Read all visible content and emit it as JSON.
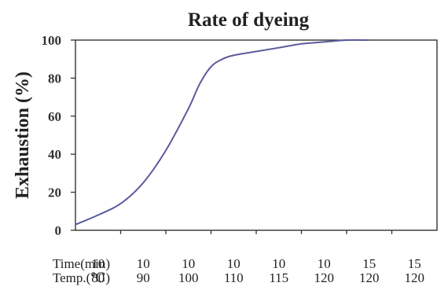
{
  "chart_data": {
    "type": "line",
    "title": "Rate of dyeing",
    "ylabel": "Exhaustion (%)",
    "xlabel": "",
    "ylim": [
      0,
      100
    ],
    "yticks": [
      0,
      20,
      40,
      60,
      80,
      100
    ],
    "x_rows": [
      {
        "label": "Time(min)",
        "values": [
          "10",
          "10",
          "10",
          "10",
          "10",
          "10",
          "15",
          "15"
        ]
      },
      {
        "label": "Temp.(℃)",
        "values": [
          "80",
          "90",
          "100",
          "110",
          "115",
          "120",
          "120",
          "120"
        ]
      }
    ],
    "series": [
      {
        "color": "#5a5a9c",
        "points": [
          {
            "x": 0,
            "y": 3
          },
          {
            "x": 0.5,
            "y": 8
          },
          {
            "x": 1.0,
            "y": 14
          },
          {
            "x": 1.5,
            "y": 25
          },
          {
            "x": 2.0,
            "y": 42
          },
          {
            "x": 2.5,
            "y": 64
          },
          {
            "x": 2.75,
            "y": 77
          },
          {
            "x": 3.0,
            "y": 86
          },
          {
            "x": 3.25,
            "y": 90
          },
          {
            "x": 3.5,
            "y": 92
          },
          {
            "x": 4.0,
            "y": 94
          },
          {
            "x": 4.5,
            "y": 96
          },
          {
            "x": 5.0,
            "y": 98
          },
          {
            "x": 5.5,
            "y": 99
          },
          {
            "x": 6.0,
            "y": 100
          },
          {
            "x": 6.5,
            "y": 100
          }
        ]
      }
    ],
    "grid": false,
    "legend": "none"
  }
}
